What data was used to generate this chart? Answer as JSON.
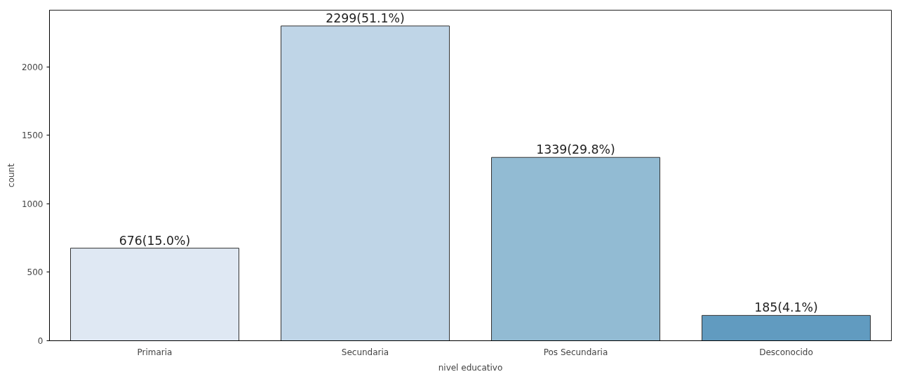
{
  "chart_data": {
    "type": "bar",
    "xlabel": "nivel educativo",
    "ylabel": "count",
    "categories": [
      "Primaria",
      "Secundaria",
      "Pos Secundaria",
      "Desconocido"
    ],
    "values": [
      676,
      2299,
      1339,
      185
    ],
    "colors": [
      "#dfe8f3",
      "#bfd5e7",
      "#92bbd3",
      "#619bc0"
    ],
    "value_labels": [
      "676(15.0%)",
      "2299(51.1%)",
      "1339(29.8%)",
      "185(4.1%)"
    ],
    "ylim": [
      0,
      2414
    ],
    "yticks": [
      0,
      500,
      1000,
      1500,
      2000
    ],
    "grid": false
  }
}
